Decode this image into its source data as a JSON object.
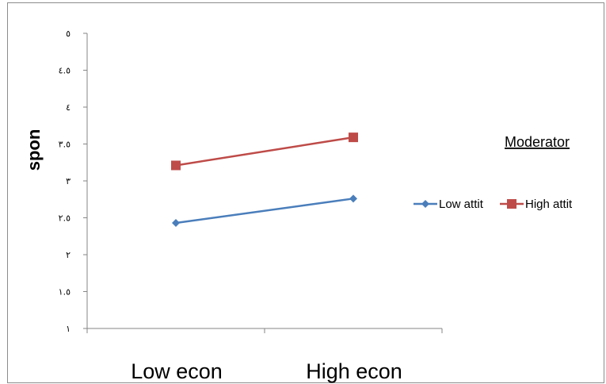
{
  "chart_data": {
    "type": "line",
    "categories": [
      "Low econ",
      "High econ"
    ],
    "ylabel": "spon",
    "ylim": [
      1,
      5
    ],
    "yticks": [
      "١",
      "١.٥",
      "٢",
      "٢.٥",
      "٣",
      "٣.٥",
      "٤",
      "٤.٥",
      "٥"
    ],
    "ytick_values": [
      1,
      1.5,
      2,
      2.5,
      3,
      3.5,
      4,
      4.5,
      5
    ],
    "legend_title": "Moderator",
    "legend_position": "right",
    "grid": false,
    "series": [
      {
        "name": "Low attit",
        "values": [
          2.43,
          2.76
        ],
        "color": "#4a7ebb",
        "marker": "diamond"
      },
      {
        "name": "High attit",
        "values": [
          3.21,
          3.59
        ],
        "color": "#be4b48",
        "marker": "square"
      }
    ]
  }
}
